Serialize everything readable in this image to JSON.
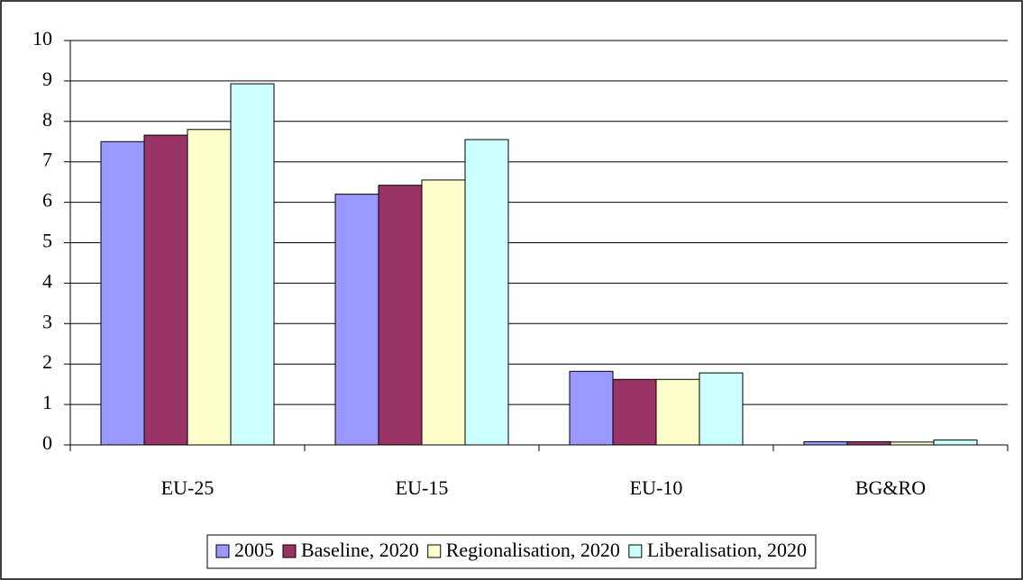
{
  "chart_data": {
    "type": "bar",
    "categories": [
      "EU-25",
      "EU-15",
      "EU-10",
      "BG&RO"
    ],
    "series": [
      {
        "name": "2005",
        "color": "#9999ff",
        "values": [
          7.5,
          6.2,
          1.82,
          0.08
        ]
      },
      {
        "name": "Baseline, 2020",
        "color": "#993366",
        "values": [
          7.66,
          6.42,
          1.62,
          0.08
        ]
      },
      {
        "name": "Regionalisation, 2020",
        "color": "#ffffcc",
        "values": [
          7.8,
          6.55,
          1.62,
          0.07
        ]
      },
      {
        "name": "Liberalisation, 2020",
        "color": "#ccffff",
        "values": [
          8.93,
          7.55,
          1.78,
          0.12
        ]
      }
    ],
    "ylim": [
      0,
      10
    ],
    "yticks": [
      0,
      1,
      2,
      3,
      4,
      5,
      6,
      7,
      8,
      9,
      10
    ],
    "grid": true,
    "legend": "bottom"
  }
}
